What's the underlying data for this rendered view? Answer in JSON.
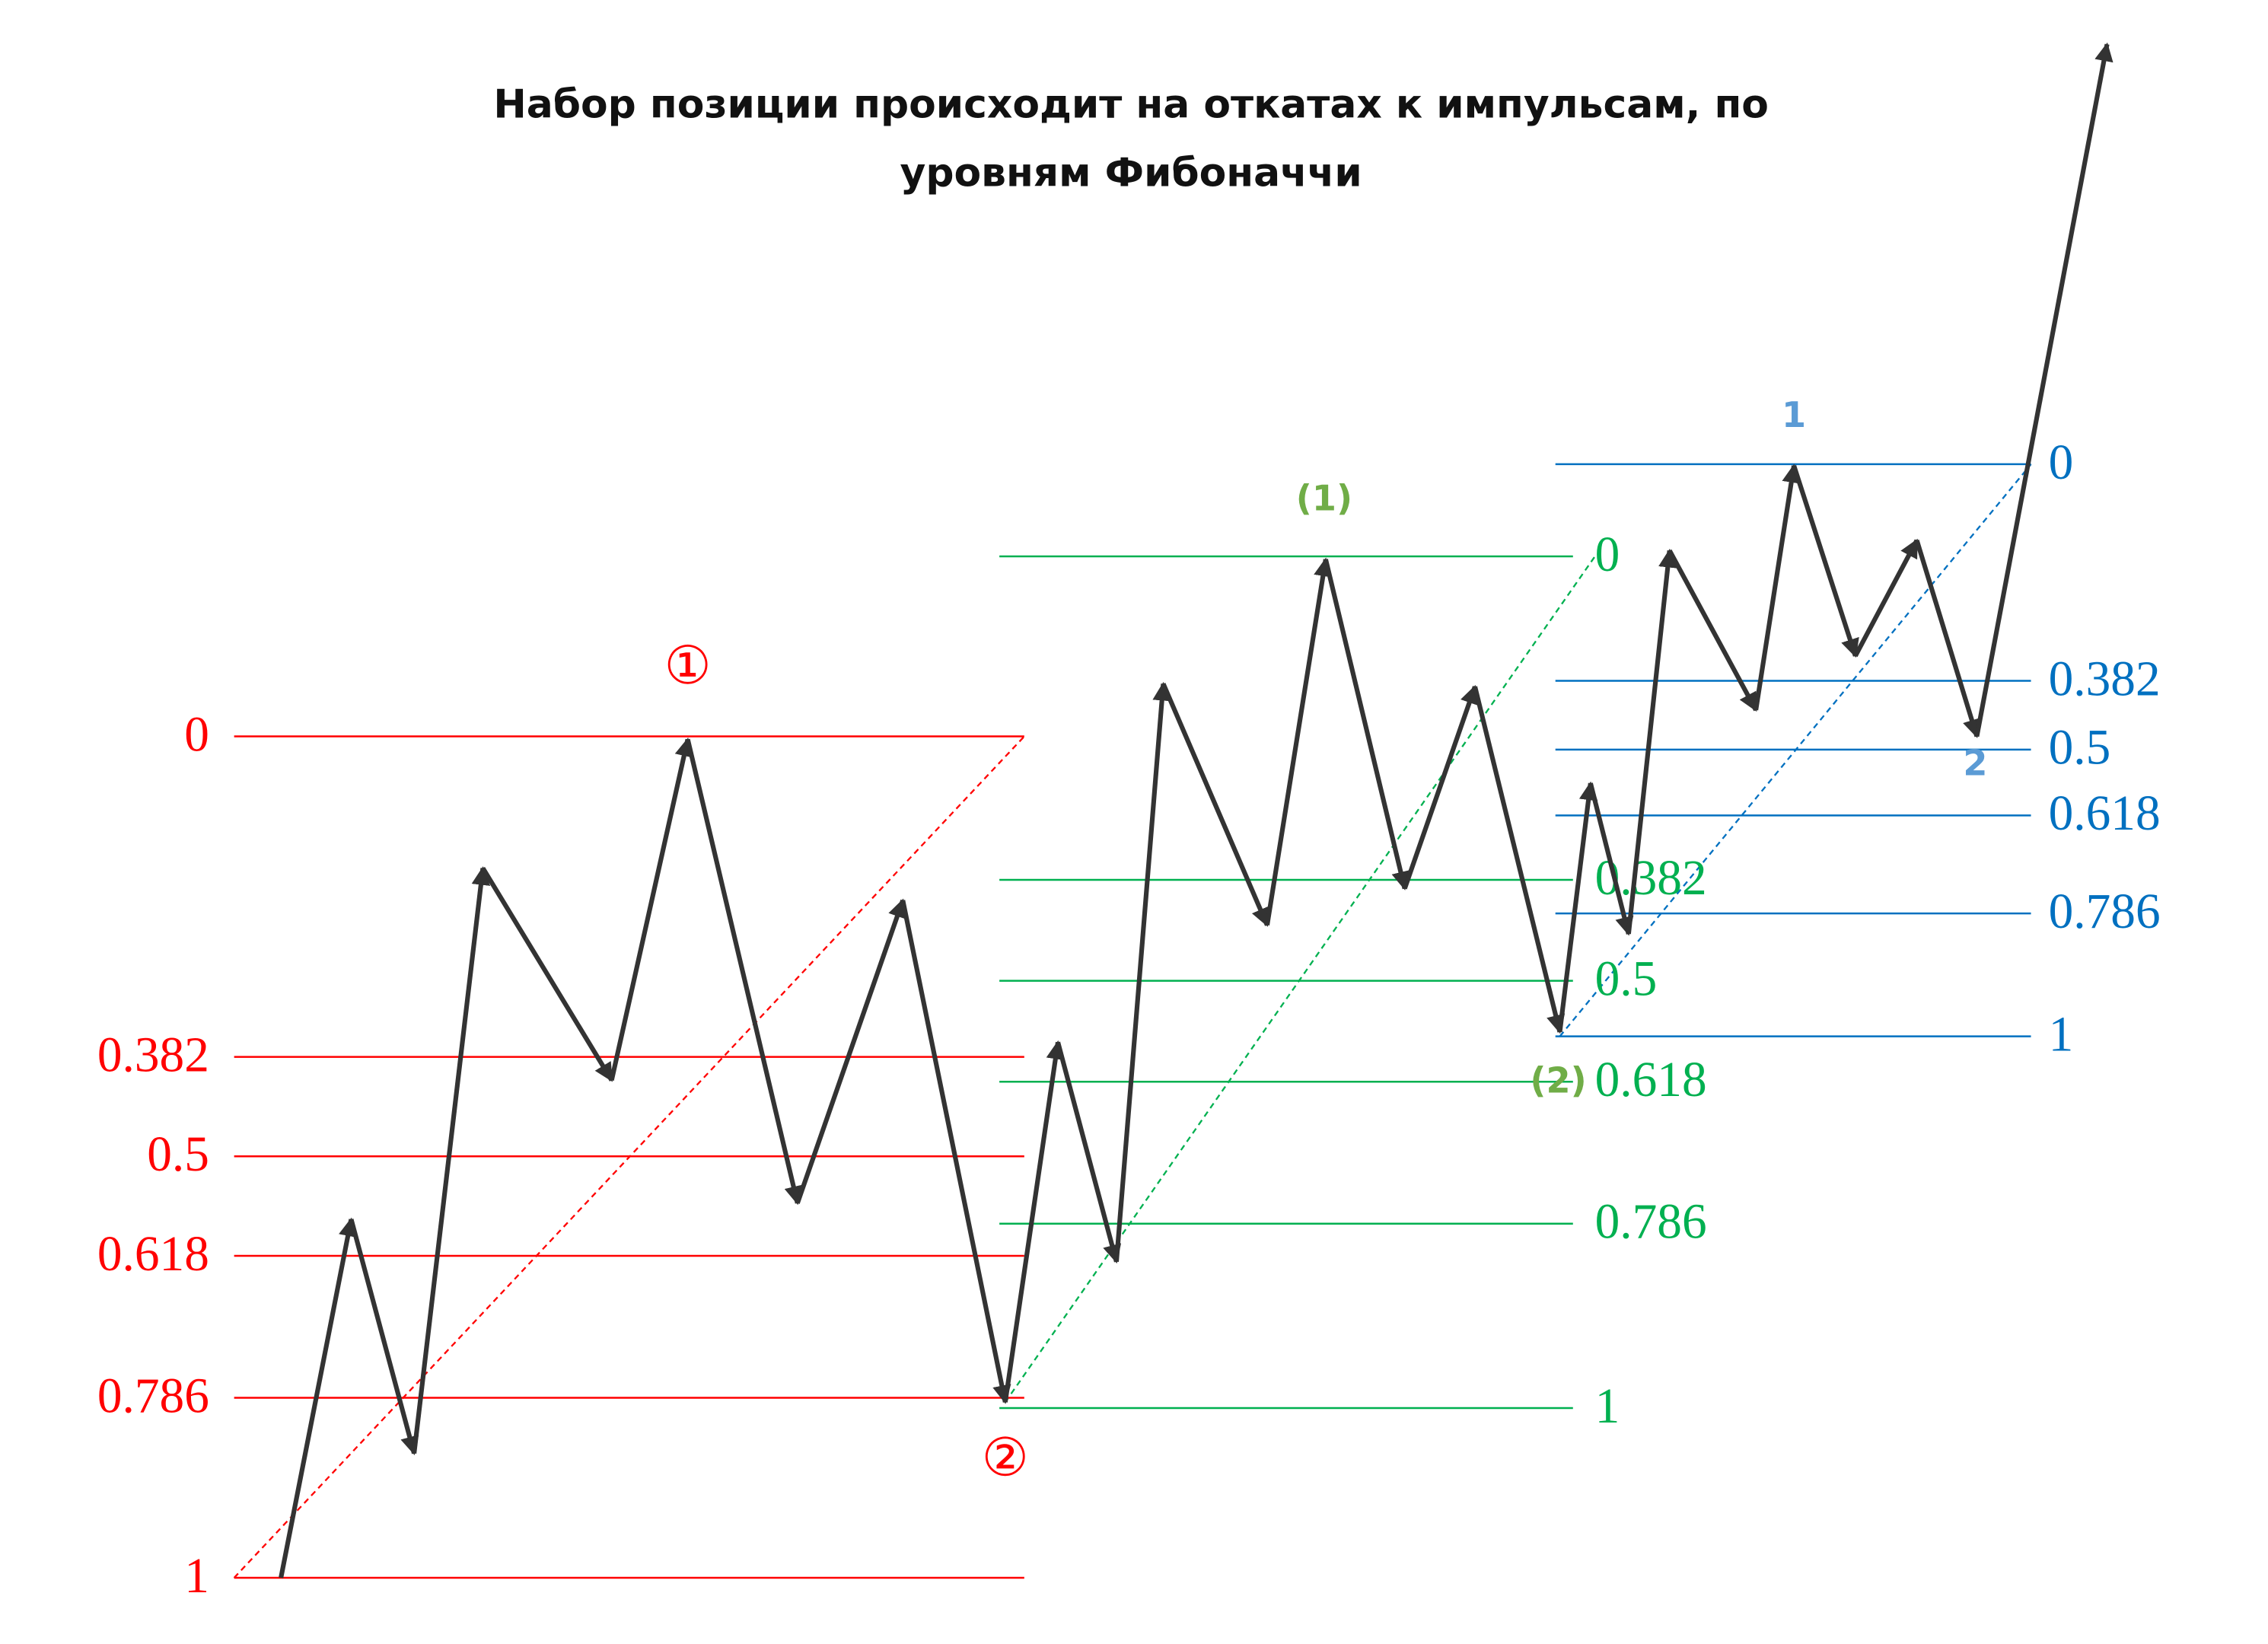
{
  "title": [
    "Набор позиции происходит на откатах к импульсам, по",
    "уровням Фибоначчи"
  ],
  "fib_sets": [
    {
      "levels": [
        "0",
        "0.382",
        "0.5",
        "0.618",
        "0.786",
        "1"
      ],
      "wave_labels": [
        "①",
        "②"
      ]
    },
    {
      "levels": [
        "0",
        "0.382",
        "0.5",
        "0.618",
        "0.786",
        "1"
      ],
      "wave_labels": [
        "(1)",
        "(2)"
      ]
    },
    {
      "levels": [
        "0",
        "0.382",
        "0.5",
        "0.618",
        "0.786",
        "1"
      ],
      "wave_labels": [
        "1",
        "2"
      ]
    }
  ]
}
